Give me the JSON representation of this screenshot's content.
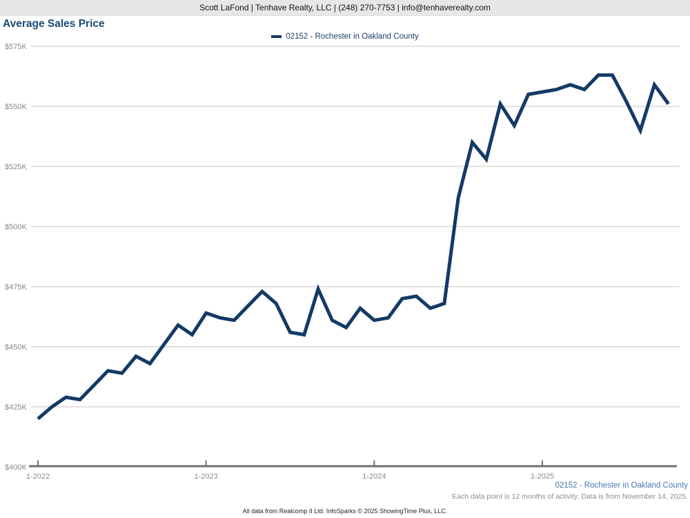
{
  "header": {
    "contact_line": "Scott LaFond | Tenhave Realty, LLC | (248) 270-7753 | info@tenhaverealty.com"
  },
  "title": "Average Sales Price",
  "legend": {
    "label": "02152 - Rochester in Oakland County",
    "color": "#143a66"
  },
  "footer": {
    "series_label": "02152 - Rochester in Oakland County",
    "note": "Each data point is 12 months of activity. Data is from November 14, 2025.",
    "attribution": "All data from Realcomp II Ltd. InfoSparks © 2025 ShowingTime Plus, LLC."
  },
  "chart_data": {
    "type": "line",
    "title": "Average Sales Price",
    "grid": "horizontal",
    "legend_position": "top-center",
    "ylim_k": [
      400,
      575
    ],
    "y_ticks": [
      "$575K",
      "$550K",
      "$525K",
      "$500K",
      "$475K",
      "$450K",
      "$425K",
      "$400K"
    ],
    "y_tick_values_k": [
      575,
      550,
      525,
      500,
      475,
      450,
      425,
      400
    ],
    "x_ticks": [
      "1-2022",
      "1-2023",
      "1-2024",
      "1-2025"
    ],
    "x_tick_month_indices": [
      0,
      12,
      24,
      36
    ],
    "x": [
      "1-2022",
      "2-2022",
      "3-2022",
      "4-2022",
      "5-2022",
      "6-2022",
      "7-2022",
      "8-2022",
      "9-2022",
      "10-2022",
      "11-2022",
      "12-2022",
      "1-2023",
      "2-2023",
      "3-2023",
      "4-2023",
      "5-2023",
      "6-2023",
      "7-2023",
      "8-2023",
      "9-2023",
      "10-2023",
      "11-2023",
      "12-2023",
      "1-2024",
      "2-2024",
      "3-2024",
      "4-2024",
      "5-2024",
      "6-2024",
      "7-2024",
      "8-2024",
      "9-2024",
      "10-2024",
      "11-2024",
      "12-2024",
      "1-2025",
      "2-2025",
      "3-2025",
      "4-2025",
      "5-2025",
      "6-2025",
      "7-2025",
      "8-2025",
      "9-2025",
      "10-2025"
    ],
    "series": [
      {
        "name": "02152 - Rochester in Oakland County",
        "color": "#143a66",
        "values_k": [
          420,
          425,
          429,
          428,
          434,
          440,
          439,
          446,
          443,
          451,
          459,
          455,
          464,
          462,
          461,
          467,
          473,
          468,
          456,
          455,
          474,
          461,
          458,
          466,
          461,
          462,
          470,
          471,
          466,
          468,
          512,
          535,
          528,
          551,
          542,
          555,
          556,
          557,
          559,
          557,
          563,
          563,
          552,
          540,
          559,
          551
        ]
      }
    ],
    "colors": {
      "line": "#143a66",
      "gridline": "#c6c6c6",
      "axis": "#707070",
      "tick_label": "#8a8a8a"
    }
  }
}
